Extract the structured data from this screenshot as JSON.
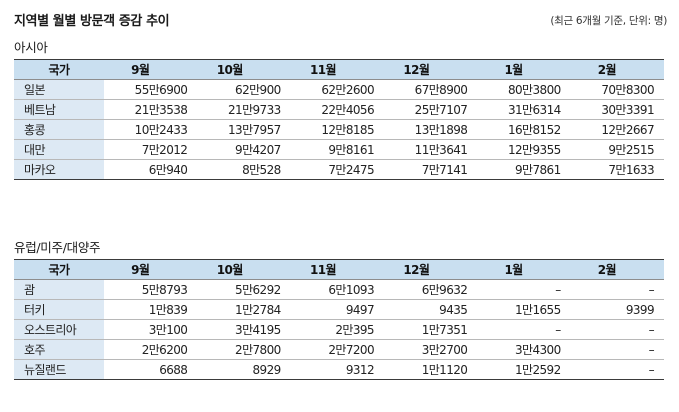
{
  "title": "지역별 월별 방문객 증감 추이",
  "note": "(최근 6개월 기준, 단위: 명)",
  "tables": [
    {
      "region": "아시아",
      "headers": [
        "국가",
        "9월",
        "10월",
        "11월",
        "12월",
        "1월",
        "2월"
      ],
      "rows": [
        {
          "country": "일본",
          "values": [
            "55만6900",
            "62만900",
            "62만2600",
            "67만8900",
            "80만3800",
            "70만8300"
          ]
        },
        {
          "country": "베트남",
          "values": [
            "21만3538",
            "21만9733",
            "22만4056",
            "25만7107",
            "31만6314",
            "30만3391"
          ]
        },
        {
          "country": "홍콩",
          "values": [
            "10만2433",
            "13만7957",
            "12만8185",
            "13만1898",
            "16만8152",
            "12만2667"
          ]
        },
        {
          "country": "대만",
          "values": [
            "7만2012",
            "9만4207",
            "9만8161",
            "11만3641",
            "12만9355",
            "9만2515"
          ]
        },
        {
          "country": "마카오",
          "values": [
            "6만940",
            "8만528",
            "7만2475",
            "7만7141",
            "9만7861",
            "7만1633"
          ]
        }
      ]
    },
    {
      "region": "유럽/미주/대양주",
      "headers": [
        "국가",
        "9월",
        "10월",
        "11월",
        "12월",
        "1월",
        "2월"
      ],
      "rows": [
        {
          "country": "괌",
          "values": [
            "5만8793",
            "5만6292",
            "6만1093",
            "6만9632",
            "–",
            "–"
          ]
        },
        {
          "country": "터키",
          "values": [
            "1만839",
            "1만2784",
            "9497",
            "9435",
            "1만1655",
            "9399"
          ]
        },
        {
          "country": "오스트리아",
          "values": [
            "3만100",
            "3만4195",
            "2만395",
            "1만7351",
            "–",
            "–"
          ]
        },
        {
          "country": "호주",
          "values": [
            "2만6200",
            "2만7800",
            "2만7200",
            "3만2700",
            "3만4300",
            "–"
          ]
        },
        {
          "country": "뉴질랜드",
          "values": [
            "6688",
            "8929",
            "9312",
            "1만1120",
            "1만2592",
            "–"
          ]
        }
      ]
    }
  ]
}
